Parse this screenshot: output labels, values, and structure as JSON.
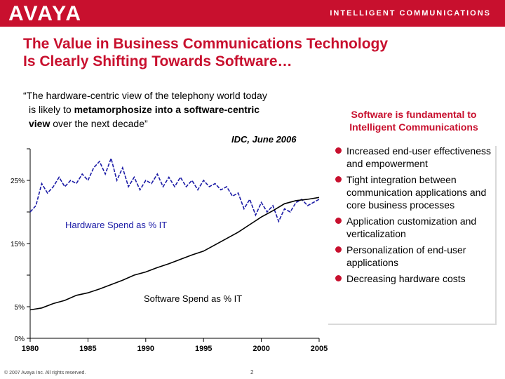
{
  "header": {
    "logo": "AVAYA",
    "tagline": "INTELLIGENT COMMUNICATIONS"
  },
  "title_line1": "The Value in Business Communications Technology",
  "title_line2": "Is Clearly Shifting Towards Software…",
  "quote": {
    "line1": "“The hardware-centric view of the telephony world today",
    "line2_pre": "is likely to ",
    "line2_bold": "metamorphosize into a software-centric",
    "line3_bold": "view",
    "line3_post": " over the next decade”"
  },
  "source": "IDC, June 2006",
  "panel": {
    "title_line1": "Software is fundamental to",
    "title_line2": "Intelligent Communications",
    "items": [
      "Increased end-user effectiveness and empowerment",
      "Tight integration between communication applications and core business processes",
      "Application customization and verticalization",
      "Personalization of end-user applications",
      "Decreasing hardware costs"
    ]
  },
  "chart_data": {
    "type": "line",
    "xlim": [
      1980,
      2005
    ],
    "ylim": [
      0,
      30
    ],
    "x_ticks": [
      1980,
      1985,
      1990,
      1995,
      2000,
      2005
    ],
    "y_tick_labels": [
      {
        "value": 0,
        "label": "0%"
      },
      {
        "value": 5,
        "label": "5%"
      },
      {
        "value": 15,
        "label": "15%"
      },
      {
        "value": 25,
        "label": "25%"
      }
    ],
    "series": [
      {
        "name": "Hardware Spend as % IT",
        "style": "dashed",
        "x": [
          1980,
          1980.5,
          1981,
          1981.5,
          1982,
          1982.5,
          1983,
          1983.5,
          1984,
          1984.5,
          1985,
          1985.5,
          1986,
          1986.5,
          1987,
          1987.5,
          1988,
          1988.5,
          1989,
          1989.5,
          1990,
          1990.5,
          1991,
          1991.5,
          1992,
          1992.5,
          1993,
          1993.5,
          1994,
          1994.5,
          1995,
          1995.5,
          1996,
          1996.5,
          1997,
          1997.5,
          1998,
          1998.5,
          1999,
          1999.5,
          2000,
          2000.5,
          2001,
          2001.5,
          2002,
          2002.5,
          2003,
          2003.5,
          2004,
          2004.5,
          2005
        ],
        "y": [
          20,
          21,
          24.5,
          23,
          24,
          25.5,
          24,
          25,
          24.5,
          26,
          25,
          27,
          28,
          26,
          28.5,
          25,
          27,
          24,
          25.5,
          23.5,
          25,
          24.5,
          26,
          24,
          25.5,
          24,
          25.5,
          24,
          25,
          23.5,
          25,
          24,
          24.5,
          23.5,
          24,
          22.5,
          23,
          20.5,
          22,
          19.5,
          21.5,
          20,
          21,
          18.5,
          20.5,
          20,
          21.5,
          22,
          21,
          21.5,
          22
        ]
      },
      {
        "name": "Software Spend as % IT",
        "style": "solid",
        "x": [
          1980,
          1981,
          1982,
          1983,
          1984,
          1985,
          1986,
          1987,
          1988,
          1989,
          1990,
          1991,
          1992,
          1993,
          1994,
          1995,
          1996,
          1997,
          1998,
          1999,
          2000,
          2001,
          2002,
          2003,
          2004,
          2005
        ],
        "y": [
          4.5,
          4.8,
          5.5,
          6,
          6.8,
          7.2,
          7.8,
          8.5,
          9.2,
          10,
          10.5,
          11.2,
          11.8,
          12.5,
          13.2,
          13.8,
          14.8,
          15.8,
          16.8,
          18,
          19.2,
          20.2,
          21.3,
          21.8,
          22,
          22.3
        ]
      }
    ],
    "annotations": [
      "Hardware Spend as % IT",
      "Software Spend as % IT"
    ]
  },
  "footer": {
    "copyright": "© 2007 Avaya Inc. All rights reserved.",
    "page": "2"
  },
  "colors": {
    "brand_red": "#c8102e",
    "hardware_line": "#1a1aa6",
    "software_line": "#000000"
  }
}
